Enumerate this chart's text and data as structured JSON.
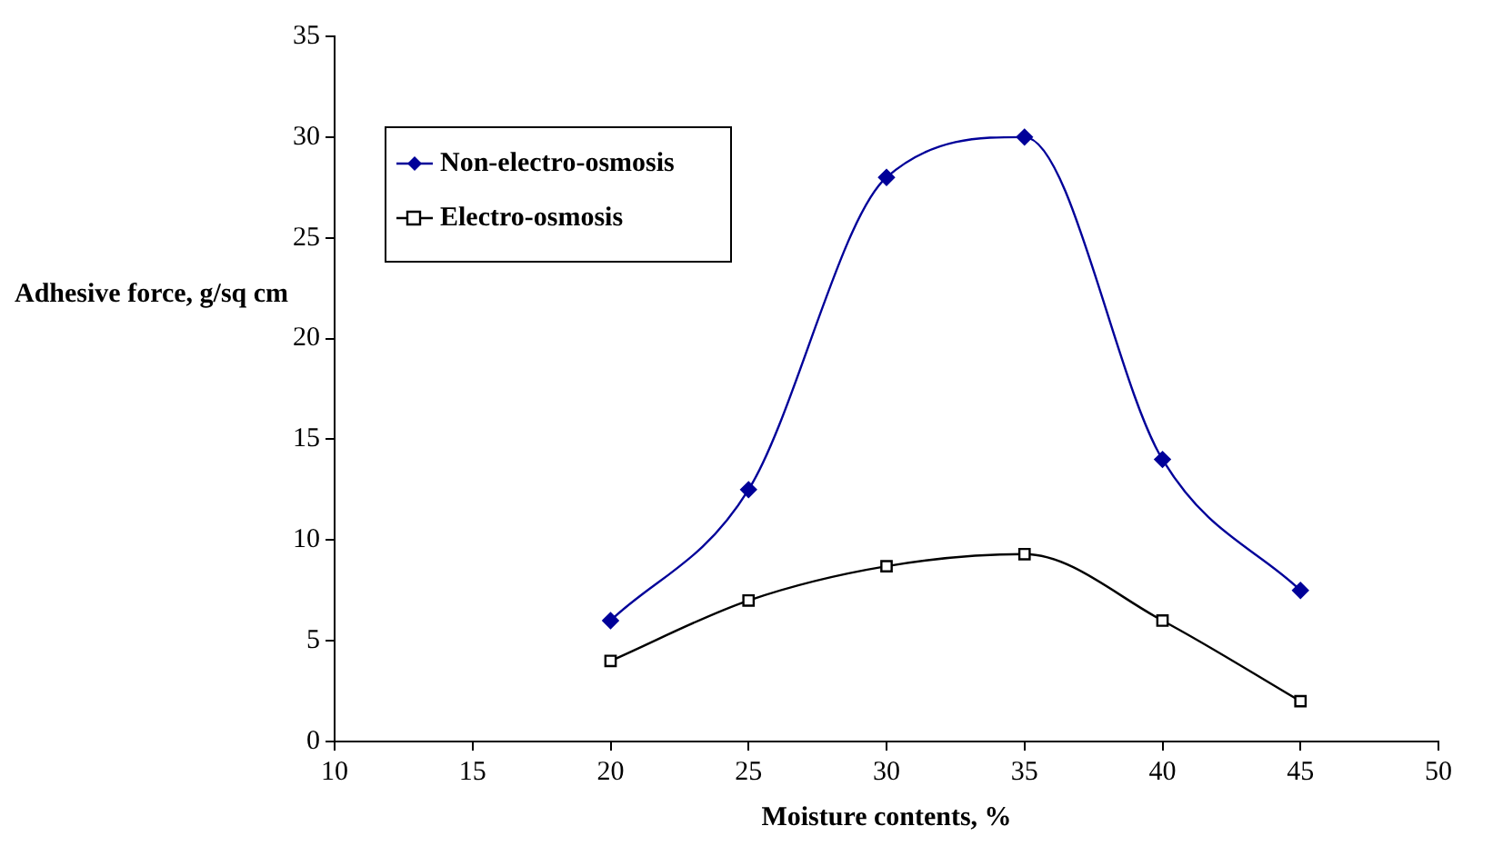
{
  "chart_data": {
    "type": "line",
    "xlabel": "Moisture contents, %",
    "ylabel": "Adhesive force, g/sq cm",
    "x": [
      20,
      25,
      30,
      35,
      40,
      45
    ],
    "series": [
      {
        "name": "Non-electro-osmosis",
        "color": "#000099",
        "marker": "diamond",
        "values": [
          6,
          12.5,
          28,
          30,
          14,
          7.5
        ]
      },
      {
        "name": "Electro-osmosis",
        "color": "#000000",
        "marker": "square",
        "values": [
          4,
          7,
          8.7,
          9.3,
          6,
          2
        ]
      }
    ],
    "xlim": [
      10,
      50
    ],
    "xticks": [
      10,
      15,
      20,
      25,
      30,
      35,
      40,
      45,
      50
    ],
    "ylim": [
      0,
      35
    ],
    "yticks": [
      0,
      5,
      10,
      15,
      20,
      25,
      30,
      35
    ],
    "grid": false,
    "legend": "top left"
  }
}
